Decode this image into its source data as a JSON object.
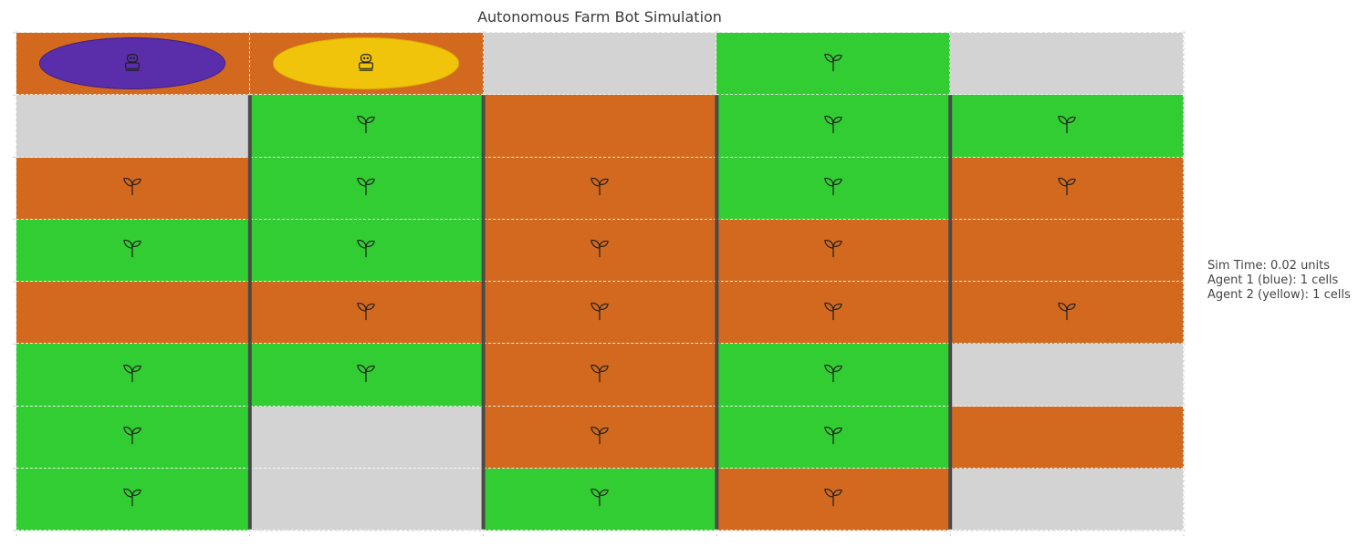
{
  "title": "Autonomous Farm Bot Simulation",
  "colors": {
    "soil": "#d2691e",
    "grass": "#32cd32",
    "empty": "#d3d3d3",
    "wall": "#4a4a4a",
    "agent1": "#5a2eaa",
    "agent2": "#f0c40a"
  },
  "grid": {
    "rows": 8,
    "cols": 5,
    "cells": [
      [
        {
          "type": "soil",
          "agent": 1
        },
        {
          "type": "soil",
          "agent": 2
        },
        {
          "type": "empty",
          "crop": false
        },
        {
          "type": "grass",
          "crop": true
        },
        {
          "type": "empty",
          "crop": false
        }
      ],
      [
        {
          "type": "empty",
          "crop": false
        },
        {
          "type": "grass",
          "crop": true
        },
        {
          "type": "soil",
          "crop": false
        },
        {
          "type": "grass",
          "crop": true
        },
        {
          "type": "grass",
          "crop": true
        }
      ],
      [
        {
          "type": "soil",
          "crop": true
        },
        {
          "type": "grass",
          "crop": true
        },
        {
          "type": "soil",
          "crop": true
        },
        {
          "type": "grass",
          "crop": true
        },
        {
          "type": "soil",
          "crop": true
        }
      ],
      [
        {
          "type": "grass",
          "crop": true
        },
        {
          "type": "grass",
          "crop": true
        },
        {
          "type": "soil",
          "crop": true
        },
        {
          "type": "soil",
          "crop": true
        },
        {
          "type": "soil",
          "crop": false
        }
      ],
      [
        {
          "type": "soil",
          "crop": false
        },
        {
          "type": "soil",
          "crop": true
        },
        {
          "type": "soil",
          "crop": true
        },
        {
          "type": "soil",
          "crop": true
        },
        {
          "type": "soil",
          "crop": true
        }
      ],
      [
        {
          "type": "grass",
          "crop": true
        },
        {
          "type": "grass",
          "crop": true
        },
        {
          "type": "soil",
          "crop": true
        },
        {
          "type": "grass",
          "crop": true
        },
        {
          "type": "empty",
          "crop": false
        }
      ],
      [
        {
          "type": "grass",
          "crop": true
        },
        {
          "type": "empty",
          "crop": false
        },
        {
          "type": "soil",
          "crop": true
        },
        {
          "type": "grass",
          "crop": true
        },
        {
          "type": "soil",
          "crop": false
        }
      ],
      [
        {
          "type": "grass",
          "crop": true
        },
        {
          "type": "empty",
          "crop": false
        },
        {
          "type": "grass",
          "crop": true
        },
        {
          "type": "soil",
          "crop": true
        },
        {
          "type": "empty",
          "crop": false
        }
      ]
    ],
    "walls": [
      {
        "between_cols": [
          0,
          1
        ],
        "from_row": 1,
        "to_row": 7
      },
      {
        "between_cols": [
          1,
          2
        ],
        "from_row": 1,
        "to_row": 7
      },
      {
        "between_cols": [
          2,
          3
        ],
        "from_row": 1,
        "to_row": 7
      },
      {
        "between_cols": [
          3,
          4
        ],
        "from_row": 1,
        "to_row": 7
      }
    ]
  },
  "agents": [
    {
      "id": 1,
      "icon": "robot-icon",
      "color": "#5a2eaa"
    },
    {
      "id": 2,
      "icon": "robot-icon",
      "color": "#f0c40a"
    }
  ],
  "info": {
    "sim_time": "Sim Time: 0.02 units",
    "agent1": "Agent 1 (blue): 1 cells",
    "agent2": "Agent 2 (yellow): 1 cells"
  }
}
